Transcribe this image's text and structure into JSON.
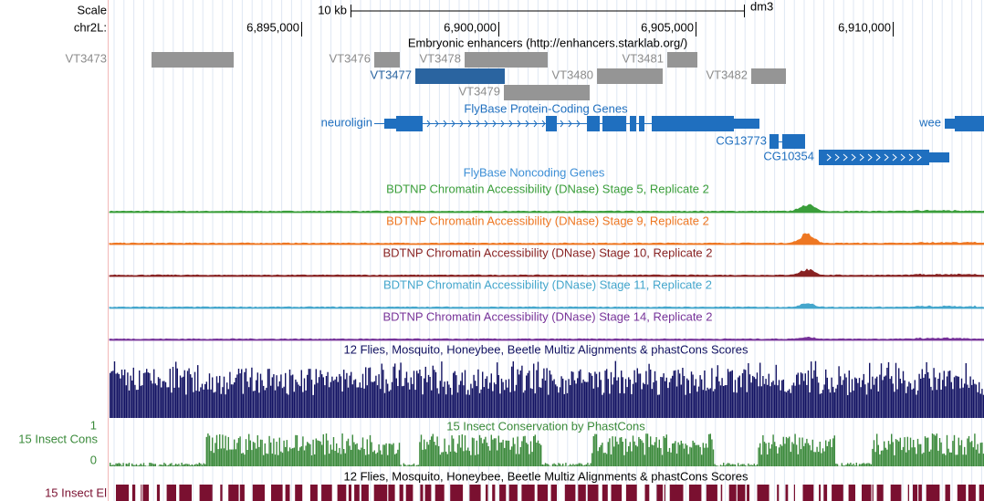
{
  "header": {
    "scale_label": "Scale",
    "scale_size": "10 kb",
    "assembly": "dm3",
    "chrom": "chr2L:",
    "positions": [
      "6,895,000",
      "6,900,000",
      "6,905,000",
      "6,910,000"
    ]
  },
  "tracks": {
    "enhancers": {
      "title": "Embryonic enhancers (http://enhancers.starklab.org/)",
      "items": [
        "VT3473",
        "VT3476",
        "VT3478",
        "VT3481",
        "VT3477",
        "VT3480",
        "VT3482",
        "VT3479"
      ]
    },
    "genes": {
      "title": "FlyBase Protein-Coding Genes",
      "items": [
        "neuroligin",
        "wee",
        "CG13773",
        "CG10354"
      ]
    },
    "noncoding": {
      "title": "FlyBase Noncoding Genes"
    },
    "dnase": [
      "BDTNP Chromatin Accessibility (DNase) Stage 5, Replicate 2",
      "BDTNP Chromatin Accessibility (DNase) Stage 9, Replicate 2",
      "BDTNP Chromatin Accessibility (DNase) Stage 10, Replicate 2",
      "BDTNP Chromatin Accessibility (DNase) Stage 11, Replicate 2",
      "BDTNP Chromatin Accessibility (DNase) Stage 14, Replicate 2"
    ],
    "multiz": {
      "title": "12 Flies, Mosquito, Honeybee, Beetle Multiz Alignments & phastCons Scores"
    },
    "cons": {
      "title": "15 Insect Conservation by PhastCons",
      "label": "15 Insect Cons",
      "max": "1",
      "min": "0"
    },
    "elements": {
      "title": "12 Flies, Mosquito, Honeybee, Beetle Multiz Alignments & phastCons Scores",
      "label": "15 Insect El"
    }
  }
}
